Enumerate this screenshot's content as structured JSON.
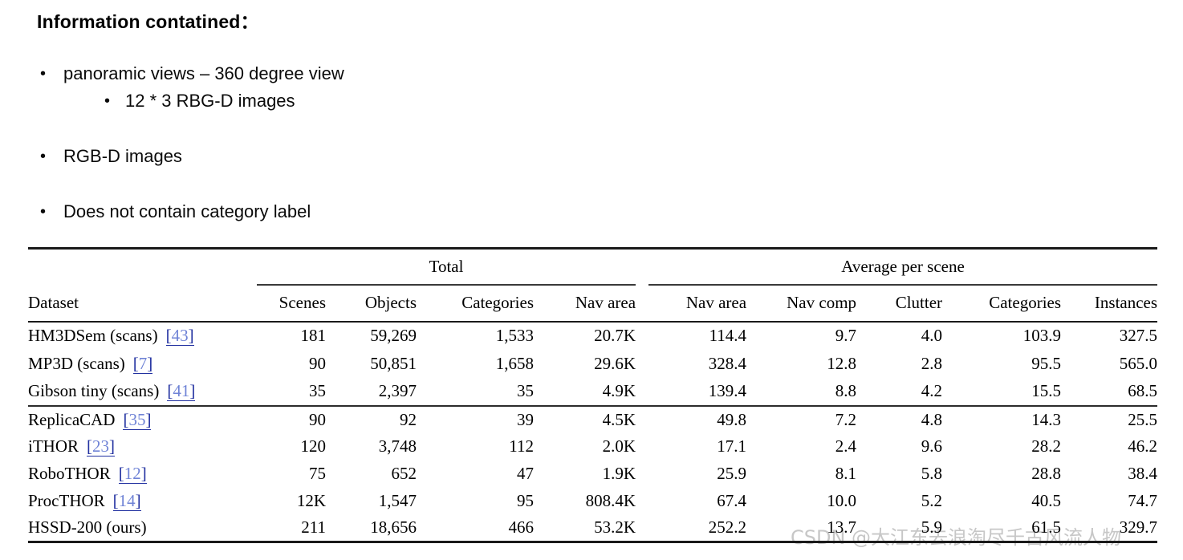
{
  "notes": {
    "heading": "Information contatined：",
    "bullets": [
      {
        "level": 1,
        "marker": "•",
        "text": "panoramic views – 360 degree view"
      },
      {
        "level": 2,
        "marker": "•",
        "text": "12 * 3 RBG-D images"
      },
      {
        "level": 1,
        "marker": "•",
        "text": "RGB-D images"
      },
      {
        "level": 1,
        "marker": "•",
        "text": "Does not contain category label"
      }
    ]
  },
  "table": {
    "group_headers": [
      {
        "label": "Total",
        "span": 4
      },
      {
        "label": "Average per scene",
        "span": 5
      }
    ],
    "columns": [
      "Dataset",
      "Scenes",
      "Objects",
      "Categories",
      "Nav area",
      "Nav area",
      "Nav comp",
      "Clutter",
      "Categories",
      "Instances"
    ],
    "groups": [
      {
        "rows": [
          {
            "dataset": "HM3DSem (scans)",
            "cite": "43",
            "values": [
              "181",
              "59,269",
              "1,533",
              "20.7K",
              "114.4",
              "9.7",
              "4.0",
              "103.9",
              "327.5"
            ]
          },
          {
            "dataset": "MP3D (scans)",
            "cite": "7",
            "values": [
              "90",
              "50,851",
              "1,658",
              "29.6K",
              "328.4",
              "12.8",
              "2.8",
              "95.5",
              "565.0"
            ]
          },
          {
            "dataset": "Gibson tiny (scans)",
            "cite": "41",
            "values": [
              "35",
              "2,397",
              "35",
              "4.9K",
              "139.4",
              "8.8",
              "4.2",
              "15.5",
              "68.5"
            ]
          }
        ]
      },
      {
        "rows": [
          {
            "dataset": "ReplicaCAD",
            "cite": "35",
            "values": [
              "90",
              "92",
              "39",
              "4.5K",
              "49.8",
              "7.2",
              "4.8",
              "14.3",
              "25.5"
            ]
          },
          {
            "dataset": "iTHOR",
            "cite": "23",
            "values": [
              "120",
              "3,748",
              "112",
              "2.0K",
              "17.1",
              "2.4",
              "9.6",
              "28.2",
              "46.2"
            ]
          },
          {
            "dataset": "RoboTHOR",
            "cite": "12",
            "values": [
              "75",
              "652",
              "47",
              "1.9K",
              "25.9",
              "8.1",
              "5.8",
              "28.8",
              "38.4"
            ]
          },
          {
            "dataset": "ProcTHOR",
            "cite": "14",
            "values": [
              "12K",
              "1,547",
              "95",
              "808.4K",
              "67.4",
              "10.0",
              "5.2",
              "40.5",
              "74.7"
            ]
          },
          {
            "dataset": "HSSD-200 (ours)",
            "cite": null,
            "values": [
              "211",
              "18,656",
              "466",
              "53.2K",
              "252.2",
              "13.7",
              "5.9",
              "61.5",
              "329.7"
            ]
          }
        ]
      }
    ],
    "colors": {
      "cite_bracket": "#2130a0",
      "cite_number": "#6f83d6",
      "rule": "#1a1a1a"
    }
  },
  "watermark": {
    "text": "CSDN @大江东去浪淘尽千古风流人物",
    "color": "#c7c7c7"
  }
}
